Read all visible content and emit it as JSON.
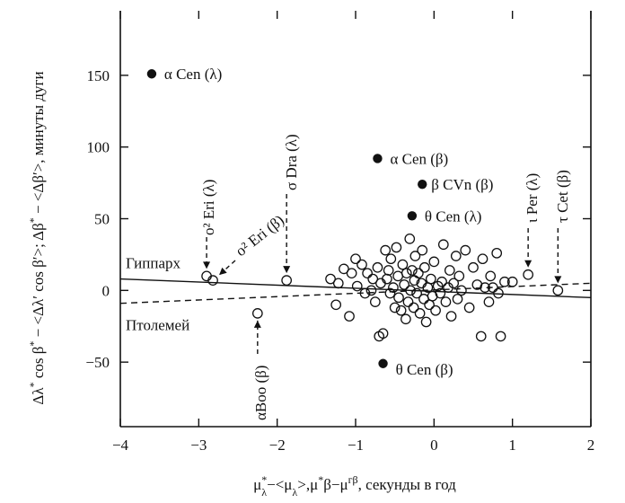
{
  "chart_data": {
    "type": "scatter",
    "xlabel": "μ*λ−<μλ>,μ*β−μгβ, секунды в год",
    "ylabel": "Δλ* cos β* − <Δλ′ cos β′>; Δβ* − <Δβ′>, минуты дуги",
    "xlim": [
      -4,
      2
    ],
    "ylim": [
      -95,
      195
    ],
    "xticks": [
      -4,
      -3,
      -2,
      -1,
      0,
      1,
      2
    ],
    "yticks": [
      -50,
      0,
      50,
      100,
      150
    ],
    "grid": false,
    "series": [
      {
        "marker": "open-circle",
        "points": [
          [
            -2.9,
            10
          ],
          [
            -2.82,
            7
          ],
          [
            -1.88,
            7
          ],
          [
            -2.25,
            -16
          ],
          [
            1.2,
            11
          ],
          [
            1.58,
            0
          ],
          [
            -1.32,
            8
          ],
          [
            -1.22,
            5
          ],
          [
            -1.25,
            -10
          ],
          [
            -1.15,
            15
          ],
          [
            -1.08,
            -18
          ],
          [
            -1.05,
            12
          ],
          [
            -1.0,
            22
          ],
          [
            -0.98,
            3
          ],
          [
            -0.92,
            18
          ],
          [
            -0.88,
            -2
          ],
          [
            -0.85,
            12
          ],
          [
            -0.8,
            0
          ],
          [
            -0.78,
            8
          ],
          [
            -0.75,
            -8
          ],
          [
            -0.72,
            16
          ],
          [
            -0.7,
            -32
          ],
          [
            -0.68,
            5
          ],
          [
            -0.65,
            -30
          ],
          [
            -0.62,
            28
          ],
          [
            -0.6,
            8
          ],
          [
            -0.58,
            14
          ],
          [
            -0.56,
            -2
          ],
          [
            -0.55,
            22
          ],
          [
            -0.52,
            2
          ],
          [
            -0.5,
            -12
          ],
          [
            -0.48,
            30
          ],
          [
            -0.46,
            10
          ],
          [
            -0.45,
            -5
          ],
          [
            -0.42,
            -14
          ],
          [
            -0.4,
            18
          ],
          [
            -0.38,
            4
          ],
          [
            -0.36,
            -20
          ],
          [
            -0.35,
            12
          ],
          [
            -0.33,
            -8
          ],
          [
            -0.31,
            36
          ],
          [
            -0.3,
            0
          ],
          [
            -0.28,
            14
          ],
          [
            -0.26,
            -12
          ],
          [
            -0.25,
            7
          ],
          [
            -0.24,
            24
          ],
          [
            -0.22,
            -2
          ],
          [
            -0.2,
            12
          ],
          [
            -0.18,
            -16
          ],
          [
            -0.16,
            5
          ],
          [
            -0.15,
            28
          ],
          [
            -0.13,
            -6
          ],
          [
            -0.12,
            16
          ],
          [
            -0.1,
            -22
          ],
          [
            -0.08,
            2
          ],
          [
            -0.06,
            -10
          ],
          [
            -0.04,
            8
          ],
          [
            -0.02,
            -4
          ],
          [
            0.0,
            20
          ],
          [
            0.02,
            -14
          ],
          [
            0.05,
            3
          ],
          [
            0.08,
            -2
          ],
          [
            0.1,
            6
          ],
          [
            0.12,
            32
          ],
          [
            0.15,
            -8
          ],
          [
            0.18,
            2
          ],
          [
            0.2,
            14
          ],
          [
            0.22,
            -18
          ],
          [
            0.25,
            5
          ],
          [
            0.28,
            24
          ],
          [
            0.3,
            -6
          ],
          [
            0.32,
            10
          ],
          [
            0.35,
            0
          ],
          [
            0.4,
            28
          ],
          [
            0.45,
            -12
          ],
          [
            0.5,
            16
          ],
          [
            0.55,
            4
          ],
          [
            0.6,
            -32
          ],
          [
            0.62,
            22
          ],
          [
            0.65,
            2
          ],
          [
            0.7,
            -8
          ],
          [
            0.72,
            10
          ],
          [
            0.75,
            2
          ],
          [
            0.8,
            26
          ],
          [
            0.82,
            -2
          ],
          [
            0.85,
            -32
          ],
          [
            0.9,
            6
          ],
          [
            1.0,
            6
          ]
        ]
      },
      {
        "marker": "filled-circle",
        "points": [
          [
            -3.6,
            151
          ],
          [
            -0.72,
            92
          ],
          [
            -0.15,
            74
          ],
          [
            -0.28,
            52
          ],
          [
            -0.65,
            -51
          ]
        ]
      }
    ],
    "lines": [
      {
        "name": "Гиппарх",
        "style": "solid",
        "x": [
          -4,
          2
        ],
        "y": [
          8,
          -5
        ]
      },
      {
        "name": "Птолемей",
        "style": "dashed",
        "x": [
          -4,
          2
        ],
        "y": [
          -9,
          5
        ]
      }
    ],
    "annotations": [
      {
        "text": "α Cen (λ)",
        "x": -3.6,
        "y": 151
      },
      {
        "text": "α Cen (β)",
        "x": -0.72,
        "y": 92
      },
      {
        "text": "β CVn (β)",
        "x": -0.15,
        "y": 74
      },
      {
        "text": "θ Cen (λ)",
        "x": -0.28,
        "y": 52
      },
      {
        "text": "θ Cen (β)",
        "x": -0.65,
        "y": -51
      },
      {
        "text": "ο² Eri (λ)",
        "x": -2.9,
        "y": 10
      },
      {
        "text": "ο² Eri (β)",
        "x": -2.82,
        "y": 7
      },
      {
        "text": "σ Dra (λ)",
        "x": -1.88,
        "y": 7
      },
      {
        "text": "αBoo (β)",
        "x": -2.25,
        "y": -16
      },
      {
        "text": "ι Per (λ)",
        "x": 1.2,
        "y": 11
      },
      {
        "text": "τ Cet (β)",
        "x": 1.58,
        "y": 0
      },
      {
        "text": "Гиппарх"
      },
      {
        "text": "Птолемей"
      }
    ]
  }
}
